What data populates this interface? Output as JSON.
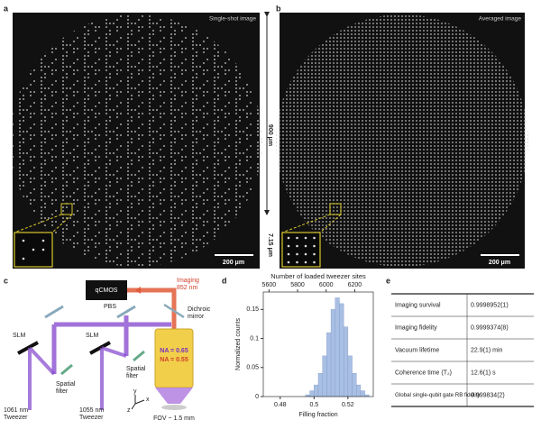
{
  "panel_labels": [
    "a",
    "b",
    "c",
    "d",
    "e"
  ],
  "image_a": {
    "caption": "Single-shot image",
    "scale_bar": "200 μm"
  },
  "image_b": {
    "caption": "Averaged image",
    "scale_bar": "200 μm"
  },
  "dimensions": {
    "diameter": "900 μm",
    "spacing": "7.15 μm"
  },
  "setup": {
    "camera": "qCMOS",
    "imaging": [
      "Imaging",
      "852 nm"
    ],
    "dichroic": [
      "Dichroic",
      "mirror"
    ],
    "pbs": "PBS",
    "slm_left": "SLM",
    "slm_right": "SLM",
    "filter_left": [
      "Spatial",
      "filter"
    ],
    "filter_right": [
      "Spatial",
      "filter"
    ],
    "na_tweezer": "NA = 0.65",
    "na_imaging": "NA = 0.55",
    "laser_left": [
      "1061 nm",
      "Tweezer"
    ],
    "laser_right": [
      "1055 nm",
      "Tweezer"
    ],
    "fov": "FOV ~ 1.5 mm",
    "axes": [
      "x",
      "y",
      "z"
    ]
  },
  "chart_data": {
    "type": "histogram",
    "xlabel": "Filling fraction",
    "ylabel": "Normalized counts",
    "x2label": "Number of loaded tweezer sites",
    "bins": [
      0.495,
      0.4975,
      0.5,
      0.5025,
      0.505,
      0.5075,
      0.51,
      0.5125,
      0.515,
      0.5175,
      0.52,
      0.5225,
      0.525,
      0.5275,
      0.53,
      0.5325
    ],
    "values": [
      0.003,
      0.01,
      0.02,
      0.04,
      0.07,
      0.11,
      0.15,
      0.17,
      0.16,
      0.12,
      0.07,
      0.04,
      0.02,
      0.01,
      0.003
    ],
    "color": "#a9bfe3",
    "xlim": [
      0.47,
      0.535
    ],
    "xticks": [
      0.48,
      0.5,
      0.52
    ],
    "x2lim": [
      5560,
      6330
    ],
    "x2ticks": [
      5600,
      5800,
      6000,
      6200
    ],
    "ylim": [
      0,
      0.18
    ],
    "yticks": [
      0,
      0.05,
      0.1,
      0.15
    ]
  },
  "table": {
    "rows": [
      [
        "Imaging survival",
        "0.9998952(1)"
      ],
      [
        "Imaging fidelity",
        "0.9999374(8)"
      ],
      [
        "Vacuum lifetime",
        "22.9(1) min"
      ],
      [
        "Coherence time (T₂)",
        "12.6(1) s"
      ],
      [
        "Global single-qubit gate RB fidelity",
        "0.999834(2)"
      ]
    ]
  }
}
